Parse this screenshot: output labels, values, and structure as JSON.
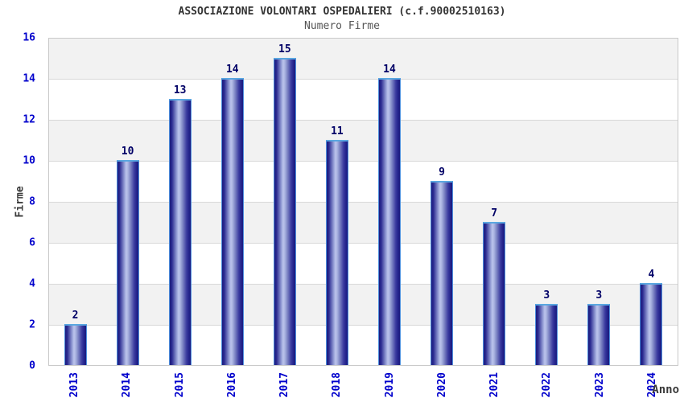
{
  "chart_data": {
    "type": "bar",
    "title": "ASSOCIAZIONE VOLONTARI OSPEDALIERI (c.f.90002510163)",
    "subtitle": "Numero Firme",
    "xlabel": "Anno",
    "ylabel": "Firme",
    "categories": [
      "2013",
      "2014",
      "2015",
      "2016",
      "2017",
      "2018",
      "2019",
      "2020",
      "2021",
      "2022",
      "2023",
      "2024"
    ],
    "values": [
      2,
      10,
      13,
      14,
      15,
      11,
      14,
      9,
      7,
      3,
      3,
      4
    ],
    "ylim": [
      0,
      16
    ],
    "y_ticks": [
      16,
      14,
      12,
      10,
      8,
      6,
      4,
      2,
      0
    ],
    "grid": true,
    "legend": "none",
    "colors": {
      "tick_label": "#0000cc",
      "value_label": "#000066",
      "title": "#333333",
      "subtitle": "#555555",
      "axis_label": "#3a3a3a",
      "band": "#f2f2f2",
      "gridline": "#d8d8d8",
      "plot_border": "#c9c9c9",
      "bar_dark": "#1b1b7e",
      "bar_light": "#bcc4ec",
      "bar_top_edge": "#5aa7e0"
    }
  }
}
